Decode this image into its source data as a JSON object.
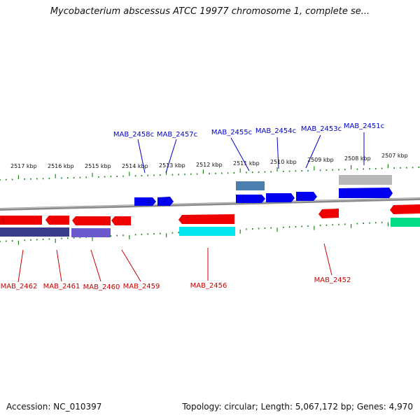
{
  "title": "Mycobacterium abscessus ATCC 19977 chromosome 1, complete se...",
  "footer": {
    "accession": "Accession: NC_010397",
    "summary": "Topology: circular; Length: 5,067,172 bp; Genes: 4,970"
  },
  "colors": {
    "forward_gene": "#0000ee",
    "reverse_gene": "#ee0000",
    "forward_label": "#0000cc",
    "reverse_label": "#cc0000",
    "tick": "#1a8a1a",
    "backbone": "#8a8a8a"
  },
  "scale": {
    "kbp_labels": [
      "2517 kbp",
      "2516 kbp",
      "2515 kbp",
      "2514 kbp",
      "2513 kbp",
      "2512 kbp",
      "2511 kbp",
      "2510 kbp",
      "2509 kbp",
      "2508 kbp",
      "2507 kbp"
    ]
  },
  "genes": {
    "forward": [
      "MAB_2458c",
      "MAB_2457c",
      "MAB_2455c",
      "MAB_2454c",
      "MAB_2453c",
      "MAB_2451c"
    ],
    "reverse": [
      "MAB_2462",
      "MAB_2461",
      "MAB_2460",
      "MAB_2459",
      "MAB_2456",
      "MAB_2452"
    ]
  }
}
